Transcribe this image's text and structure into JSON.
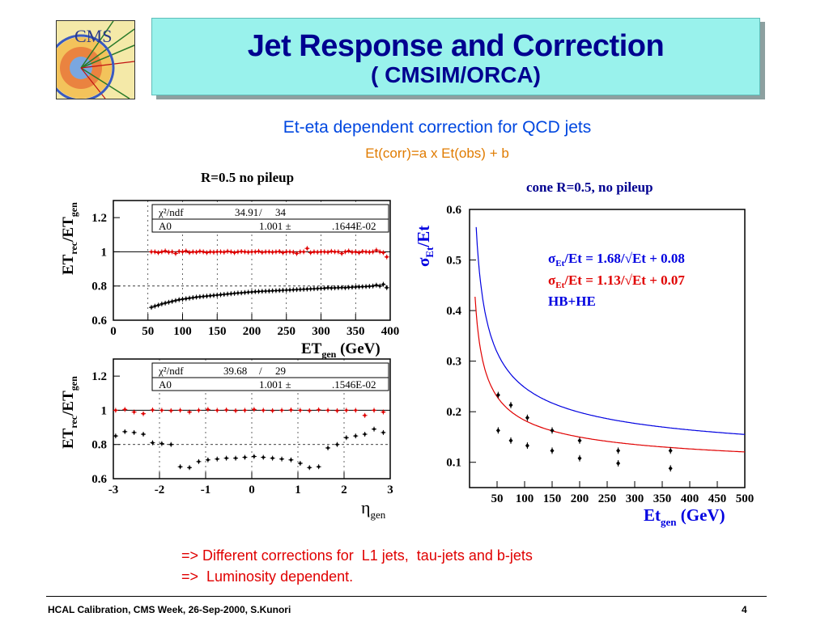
{
  "logo": {
    "text": "CMS"
  },
  "title": {
    "line1": "Jet Response and  Correction",
    "line2": "( CMSIM/ORCA)"
  },
  "subtitle": "Et-eta dependent correction for QCD jets",
  "formula": "Et(corr)=a x Et(obs) + b",
  "conclusions": [
    "=> Different corrections for  L1 jets,  tau-jets and b-jets",
    "=>  Luminosity dependent."
  ],
  "footer": {
    "left": "HCAL Calibration, CMS Week, 26-Sep-2000, S.Kunori",
    "page": "4"
  },
  "colors": {
    "red_points": "#e00000",
    "black_points": "#000000",
    "blue_curve": "#0000e0",
    "red_curve": "#e00000"
  },
  "chart_data": [
    {
      "type": "scatter",
      "title": "R=0.5 no pileup",
      "ylabel_main": "ET",
      "ylabel_sub1": "rec",
      "ylabel_mid": "/ET",
      "ylabel_sub2": "gen",
      "xlabel_main": "ET",
      "xlabel_sub": "gen",
      "xlabel_unit": " (GeV)",
      "xlim": [
        0,
        400
      ],
      "ylim": [
        0.6,
        1.3
      ],
      "xticks": [
        0,
        50,
        100,
        150,
        200,
        250,
        300,
        350,
        400
      ],
      "yticks": [
        0.6,
        0.8,
        1,
        1.2
      ],
      "xtick_labels": [
        "0",
        "50",
        "100",
        "150",
        "200",
        "250",
        "300",
        "350",
        "400"
      ],
      "ytick_labels": [
        "0.6",
        "0.8",
        "1",
        "1.2"
      ],
      "hlines": [
        1.0,
        0.8
      ],
      "stats": {
        "r1c1": "χ²/ndf",
        "r1c2": "34.91",
        "r1c3": "/",
        "r1c4": "34",
        "r2c1": "A0",
        "r2c2": "1.001 ±",
        "r2c3": ".1644E-02"
      },
      "series": [
        {
          "color": "red",
          "x": [
            55,
            60,
            65,
            70,
            75,
            80,
            85,
            90,
            95,
            100,
            105,
            110,
            115,
            120,
            125,
            130,
            135,
            140,
            145,
            150,
            155,
            160,
            165,
            170,
            175,
            180,
            185,
            190,
            195,
            200,
            205,
            210,
            215,
            220,
            225,
            230,
            235,
            240,
            245,
            250,
            255,
            260,
            265,
            270,
            275,
            280,
            285,
            290,
            295,
            300,
            305,
            310,
            315,
            320,
            325,
            330,
            335,
            340,
            345,
            350,
            355,
            360,
            365,
            370,
            375,
            380,
            385,
            390,
            395
          ],
          "y": [
            1.0,
            1.0,
            0.995,
            1.0,
            1.005,
            0.998,
            1.0,
            0.99,
            1.002,
            1.0,
            1.005,
            0.996,
            1.0,
            0.998,
            1.003,
            1.0,
            0.995,
            1.0,
            0.998,
            1.0,
            1.0,
            0.998,
            1.003,
            1.0,
            0.995,
            1.0,
            1.002,
            1.0,
            0.998,
            1.0,
            1.0,
            1.003,
            0.997,
            1.0,
            1.0,
            0.998,
            1.0,
            1.002,
            0.995,
            1.0,
            1.0,
            0.998,
            0.99,
            1.0,
            1.0,
            1.02,
            0.995,
            1.0,
            0.998,
            1.0,
            1.0,
            0.998,
            1.003,
            1.0,
            1.0,
            0.99,
            1.0,
            1.005,
            0.998,
            1.0,
            0.995,
            1.002,
            1.0,
            0.998,
            1.0,
            1.01,
            1.0,
            0.995,
            0.97
          ]
        },
        {
          "color": "black",
          "x": [
            55,
            60,
            65,
            70,
            75,
            80,
            85,
            90,
            95,
            100,
            105,
            110,
            115,
            120,
            125,
            130,
            135,
            140,
            145,
            150,
            155,
            160,
            165,
            170,
            175,
            180,
            185,
            190,
            195,
            200,
            205,
            210,
            215,
            220,
            225,
            230,
            235,
            240,
            245,
            250,
            255,
            260,
            265,
            270,
            275,
            280,
            285,
            290,
            295,
            300,
            305,
            310,
            315,
            320,
            325,
            330,
            335,
            340,
            345,
            350,
            355,
            360,
            365,
            370,
            375,
            380,
            385,
            390,
            395
          ],
          "y": [
            0.675,
            0.682,
            0.688,
            0.695,
            0.7,
            0.705,
            0.71,
            0.715,
            0.72,
            0.723,
            0.726,
            0.729,
            0.732,
            0.735,
            0.737,
            0.739,
            0.741,
            0.743,
            0.745,
            0.747,
            0.749,
            0.751,
            0.753,
            0.755,
            0.757,
            0.759,
            0.76,
            0.762,
            0.764,
            0.765,
            0.767,
            0.768,
            0.769,
            0.77,
            0.771,
            0.772,
            0.773,
            0.774,
            0.775,
            0.776,
            0.777,
            0.778,
            0.779,
            0.78,
            0.781,
            0.782,
            0.783,
            0.784,
            0.785,
            0.786,
            0.787,
            0.79,
            0.788,
            0.789,
            0.79,
            0.791,
            0.79,
            0.792,
            0.793,
            0.794,
            0.795,
            0.796,
            0.797,
            0.798,
            0.8,
            0.805,
            0.8,
            0.81,
            0.79
          ]
        }
      ]
    },
    {
      "type": "scatter",
      "ylabel_main": "ET",
      "ylabel_sub1": "rec",
      "ylabel_mid": "/ET",
      "ylabel_sub2": "gen",
      "xlabel_main": "η",
      "xlabel_sub": "gen",
      "xlim": [
        -3,
        3
      ],
      "ylim": [
        0.6,
        1.3
      ],
      "xticks": [
        -3,
        -2,
        -1,
        0,
        1,
        2,
        3
      ],
      "yticks": [
        0.6,
        0.8,
        1,
        1.2
      ],
      "xtick_labels": [
        "-3",
        "-2",
        "-1",
        "0",
        "1",
        "2",
        "3"
      ],
      "ytick_labels": [
        "0.6",
        "0.8",
        "1",
        "1.2"
      ],
      "hlines": [
        1.0,
        0.8
      ],
      "stats": {
        "r1c1": "χ²/ndf",
        "r1c2": "39.68",
        "r1c3": "/",
        "r1c4": "29",
        "r2c1": "A0",
        "r2c2": "1.001 ±",
        "r2c3": ".1546E-02"
      },
      "series": [
        {
          "color": "red",
          "x": [
            -2.95,
            -2.75,
            -2.55,
            -2.35,
            -2.15,
            -1.95,
            -1.75,
            -1.55,
            -1.35,
            -1.15,
            -0.95,
            -0.75,
            -0.55,
            -0.35,
            -0.15,
            0.05,
            0.25,
            0.45,
            0.65,
            0.85,
            1.05,
            1.25,
            1.45,
            1.65,
            1.85,
            2.05,
            2.25,
            2.45,
            2.65,
            2.85
          ],
          "y": [
            1.0,
            1.005,
            0.99,
            0.98,
            1.002,
            1.0,
            0.998,
            1.0,
            0.99,
            1.0,
            1.005,
            1.0,
            1.002,
            0.998,
            1.0,
            1.005,
            1.0,
            0.998,
            1.0,
            1.002,
            1.0,
            0.998,
            1.003,
            1.0,
            0.998,
            1.0,
            1.0,
            0.97,
            1.0,
            0.99
          ]
        },
        {
          "color": "black",
          "x": [
            -2.95,
            -2.75,
            -2.55,
            -2.35,
            -2.15,
            -1.95,
            -1.75,
            -1.55,
            -1.35,
            -1.15,
            -0.95,
            -0.75,
            -0.55,
            -0.35,
            -0.15,
            0.05,
            0.25,
            0.45,
            0.65,
            0.85,
            1.05,
            1.25,
            1.45,
            1.65,
            1.85,
            2.05,
            2.25,
            2.45,
            2.65,
            2.85
          ],
          "y": [
            0.85,
            0.875,
            0.87,
            0.86,
            0.81,
            0.805,
            0.8,
            0.67,
            0.665,
            0.7,
            0.71,
            0.715,
            0.72,
            0.72,
            0.725,
            0.73,
            0.725,
            0.72,
            0.715,
            0.71,
            0.69,
            0.665,
            0.67,
            0.78,
            0.8,
            0.84,
            0.85,
            0.86,
            0.89,
            0.87
          ]
        }
      ]
    },
    {
      "type": "scatter",
      "title": "cone R=0.5, no pileup",
      "ylabel": "σEt/Et",
      "ylabel_sigma": "σ",
      "ylabel_sub": "Et",
      "ylabel_rest": "/Et",
      "xlabel_main": "Et",
      "xlabel_sub": "gen",
      "xlabel_unit": "  (GeV)",
      "xlim": [
        0,
        500
      ],
      "ylim": [
        0.05,
        0.6
      ],
      "xticks": [
        50,
        100,
        150,
        200,
        250,
        300,
        350,
        400,
        450,
        500
      ],
      "yticks": [
        0.1,
        0.2,
        0.3,
        0.4,
        0.5,
        0.6
      ],
      "xtick_labels": [
        "50",
        "100",
        "150",
        "200",
        "250",
        "300",
        "350",
        "400",
        "450",
        "500"
      ],
      "ytick_labels": [
        "0.1",
        "0.2",
        "0.3",
        "0.4",
        "0.5",
        "0.6"
      ],
      "legend": [
        {
          "color": "blue",
          "sigma": "σ",
          "sub": "Et",
          "text": "/Et = 1.68/√Et + 0.08"
        },
        {
          "color": "red",
          "sigma": "σ",
          "sub": "Et",
          "text": "/Et = 1.13/√Et + 0.07"
        },
        {
          "color": "blue",
          "sigma": "",
          "sub": "",
          "text": "HB+HE"
        }
      ],
      "curves": [
        {
          "color": "blue",
          "a": 1.68,
          "b": 0.08
        },
        {
          "color": "red",
          "a": 1.13,
          "b": 0.07
        }
      ],
      "series": [
        {
          "color": "black",
          "x": [
            52,
            75,
            105,
            150,
            200,
            270,
            365
          ],
          "y": [
            0.233,
            0.213,
            0.188,
            0.163,
            0.143,
            0.123,
            0.123
          ]
        },
        {
          "color": "black",
          "x": [
            52,
            75,
            105,
            150,
            200,
            270,
            365
          ],
          "y": [
            0.163,
            0.143,
            0.133,
            0.123,
            0.108,
            0.098,
            0.088
          ]
        }
      ]
    }
  ]
}
